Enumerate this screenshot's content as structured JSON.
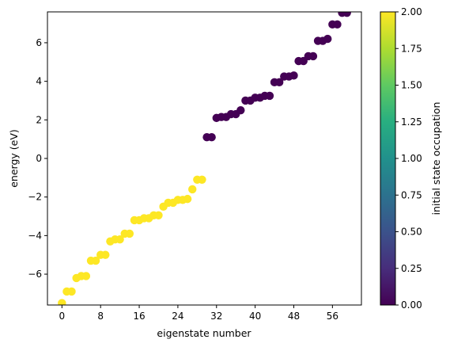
{
  "chart_data": {
    "type": "scatter",
    "title": "",
    "xlabel": "eigenstate number",
    "ylabel": "energy (eV)",
    "xlim": [
      -3,
      62
    ],
    "ylim": [
      -7.6,
      7.6
    ],
    "xticks": [
      0,
      8,
      16,
      24,
      32,
      40,
      48,
      56
    ],
    "yticks": [
      -6,
      -4,
      -2,
      0,
      2,
      4,
      6
    ],
    "xtick_labels": [
      "0",
      "8",
      "16",
      "24",
      "32",
      "40",
      "48",
      "56"
    ],
    "ytick_labels": [
      "−6",
      "−4",
      "−2",
      "0",
      "2",
      "4",
      "6"
    ],
    "colormap": "viridis",
    "colorbar": {
      "label": "initial state occupation",
      "range": [
        0,
        2
      ],
      "ticks": [
        0,
        0.25,
        0.5,
        0.75,
        1.0,
        1.25,
        1.5,
        1.75,
        2.0
      ],
      "tick_labels": [
        "0.00",
        "0.25",
        "0.50",
        "0.75",
        "1.00",
        "1.25",
        "1.50",
        "1.75",
        "2.00"
      ]
    },
    "grid": false,
    "x": [
      0,
      1,
      2,
      3,
      4,
      5,
      6,
      7,
      8,
      9,
      10,
      11,
      12,
      13,
      14,
      15,
      16,
      17,
      18,
      19,
      20,
      21,
      22,
      23,
      24,
      25,
      26,
      27,
      28,
      29,
      30,
      31,
      32,
      33,
      34,
      35,
      36,
      37,
      38,
      39,
      40,
      41,
      42,
      43,
      44,
      45,
      46,
      47,
      48,
      49,
      50,
      51,
      52,
      53,
      54,
      55,
      56,
      57,
      58,
      59
    ],
    "y": [
      -7.5,
      -6.9,
      -6.9,
      -6.2,
      -6.1,
      -6.1,
      -5.3,
      -5.3,
      -5.0,
      -5.0,
      -4.3,
      -4.2,
      -4.2,
      -3.9,
      -3.9,
      -3.2,
      -3.2,
      -3.1,
      -3.1,
      -2.95,
      -2.95,
      -2.5,
      -2.3,
      -2.3,
      -2.15,
      -2.15,
      -2.1,
      -1.6,
      -1.1,
      -1.1,
      1.1,
      1.1,
      2.1,
      2.15,
      2.15,
      2.3,
      2.3,
      2.5,
      3.0,
      3.0,
      3.15,
      3.15,
      3.25,
      3.25,
      3.95,
      3.95,
      4.25,
      4.25,
      4.3,
      5.05,
      5.05,
      5.3,
      5.3,
      6.1,
      6.1,
      6.2,
      6.95,
      6.95,
      7.55,
      7.55
    ],
    "occupation": [
      2,
      2,
      2,
      2,
      2,
      2,
      2,
      2,
      2,
      2,
      2,
      2,
      2,
      2,
      2,
      2,
      2,
      2,
      2,
      2,
      2,
      2,
      2,
      2,
      2,
      2,
      2,
      2,
      2,
      2,
      0,
      0,
      0,
      0,
      0,
      0,
      0,
      0,
      0,
      0,
      0,
      0,
      0,
      0,
      0,
      0,
      0,
      0,
      0,
      0,
      0,
      0,
      0,
      0,
      0,
      0,
      0,
      0,
      0,
      0
    ],
    "occupation_colors": {
      "0": "#440154",
      "2": "#fde725"
    }
  }
}
